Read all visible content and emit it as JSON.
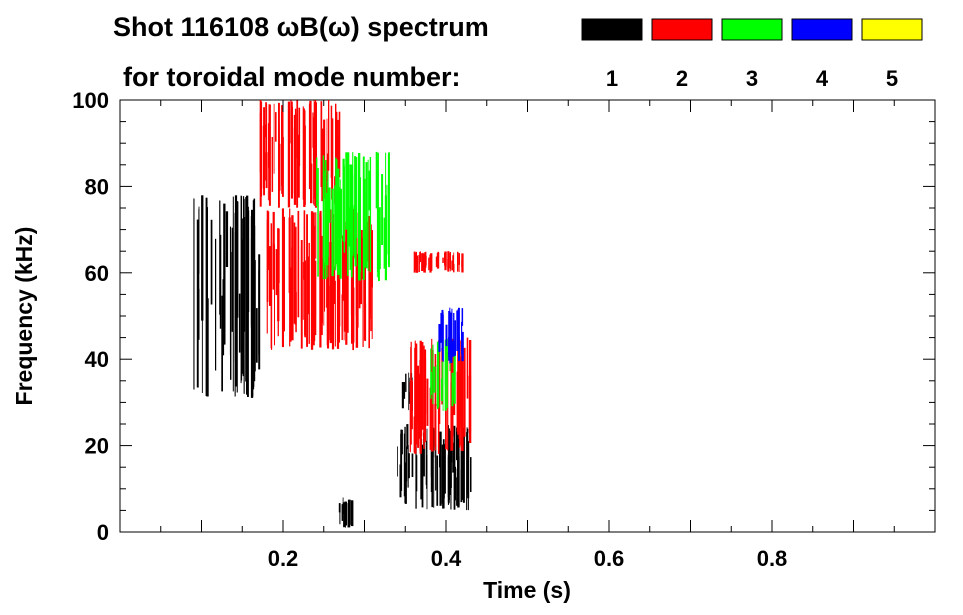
{
  "chart_data": {
    "type": "heatmap",
    "title_line1": "Shot 116108 ωB(ω) spectrum",
    "title_line2": "for toroidal mode number:",
    "xlabel": "Time (s)",
    "ylabel": "Frequency (kHz)",
    "xlim": [
      0.0,
      1.0
    ],
    "ylim": [
      0,
      100
    ],
    "x_ticks": [
      0.2,
      0.4,
      0.6,
      0.8
    ],
    "x_tick_labels": [
      "0.2",
      "0.4",
      "0.6",
      "0.8"
    ],
    "y_ticks": [
      0,
      20,
      40,
      60,
      80,
      100
    ],
    "y_tick_labels": [
      "0",
      "20",
      "40",
      "60",
      "80",
      "100"
    ],
    "grid": false,
    "legend_placement": "top-right",
    "legend": [
      {
        "label": "1",
        "color": "#000000"
      },
      {
        "label": "2",
        "color": "#ff0000"
      },
      {
        "label": "3",
        "color": "#00ff00"
      },
      {
        "label": "4",
        "color": "#0000ff"
      },
      {
        "label": "5",
        "color": "#ffff00"
      }
    ],
    "regions": [
      {
        "mode": 1,
        "t": [
          0.09,
          0.17
        ],
        "f": [
          31,
          78
        ]
      },
      {
        "mode": 1,
        "t": [
          0.265,
          0.285
        ],
        "f": [
          1,
          8
        ]
      },
      {
        "mode": 1,
        "t": [
          0.34,
          0.43
        ],
        "f": [
          5,
          25
        ]
      },
      {
        "mode": 1,
        "t": [
          0.345,
          0.36
        ],
        "f": [
          28,
          37
        ]
      },
      {
        "mode": 2,
        "t": [
          0.17,
          0.27
        ],
        "f": [
          75,
          100
        ]
      },
      {
        "mode": 2,
        "t": [
          0.18,
          0.31
        ],
        "f": [
          42,
          75
        ]
      },
      {
        "mode": 2,
        "t": [
          0.36,
          0.42
        ],
        "f": [
          60,
          65
        ]
      },
      {
        "mode": 2,
        "t": [
          0.35,
          0.43
        ],
        "f": [
          18,
          45
        ]
      },
      {
        "mode": 3,
        "t": [
          0.24,
          0.33
        ],
        "f": [
          58,
          88
        ]
      },
      {
        "mode": 3,
        "t": [
          0.38,
          0.41
        ],
        "f": [
          28,
          45
        ]
      },
      {
        "mode": 4,
        "t": [
          0.39,
          0.42
        ],
        "f": [
          39,
          52
        ]
      }
    ]
  }
}
